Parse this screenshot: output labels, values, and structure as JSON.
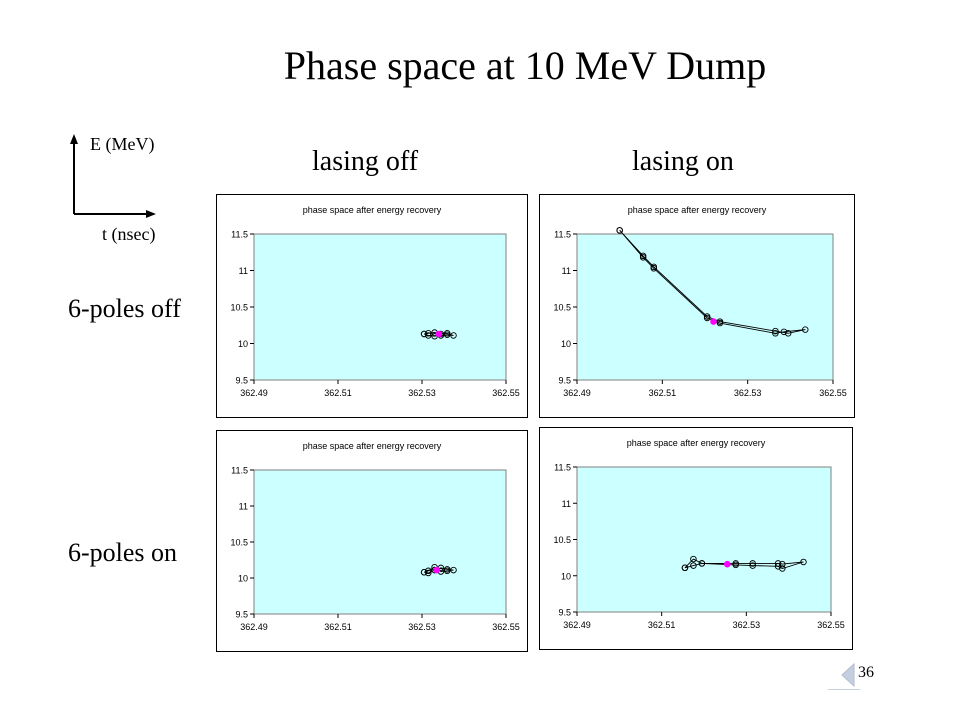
{
  "slide": {
    "title": "Phase space at 10 MeV Dump",
    "axis_hint": {
      "y_label": "E (MeV)",
      "x_label": "t (nsec)"
    },
    "columns": [
      "lasing off",
      "lasing on"
    ],
    "rows": [
      "6-poles off",
      "6-poles on"
    ],
    "page_number": "36"
  },
  "colors": {
    "plot_area": "#ccffff",
    "data_line": "#000000",
    "highlight_point": "#ff00ff"
  },
  "chart_data": [
    {
      "type": "line",
      "title": "phase space after energy recovery",
      "xlabel": "",
      "ylabel": "",
      "xlim": [
        362.49,
        362.55
      ],
      "ylim": [
        9.5,
        11.5
      ],
      "x_ticks": [
        "362.49",
        "362.51",
        "362.53",
        "362.55"
      ],
      "y_ticks": [
        "9.5",
        "10",
        "10.5",
        "11",
        "11.5"
      ],
      "grid": false,
      "series": [
        {
          "x": [
            362.5305,
            362.5315,
            362.533,
            362.5345,
            362.536,
            362.5375,
            362.536,
            362.5345,
            362.533,
            362.5315,
            362.5305
          ],
          "y": [
            10.13,
            10.11,
            10.1,
            10.11,
            10.12,
            10.11,
            10.14,
            10.13,
            10.15,
            10.14,
            10.13
          ]
        }
      ],
      "highlight": [
        [
          362.534,
          10.13
        ]
      ]
    },
    {
      "type": "line",
      "title": "phase space after energy recovery",
      "xlabel": "",
      "ylabel": "",
      "xlim": [
        362.49,
        362.55
      ],
      "ylim": [
        9.5,
        11.5
      ],
      "x_ticks": [
        "362.49",
        "362.51",
        "362.53",
        "362.55"
      ],
      "y_ticks": [
        "9.5",
        "10",
        "10.5",
        "11",
        "11.5"
      ],
      "grid": false,
      "series": [
        {
          "x": [
            362.5,
            362.5055,
            362.508,
            362.5205,
            362.5235,
            362.5365,
            362.5395,
            362.5435,
            362.5385,
            362.5365,
            362.5235,
            362.5205,
            362.508,
            362.5055,
            362.5
          ],
          "y": [
            11.55,
            11.2,
            11.05,
            10.37,
            10.3,
            10.17,
            10.14,
            10.19,
            10.16,
            10.14,
            10.28,
            10.35,
            11.03,
            11.18,
            11.55
          ]
        }
      ],
      "highlight": [
        [
          362.522,
          10.3
        ]
      ]
    },
    {
      "type": "line",
      "title": "phase space after energy recovery",
      "xlabel": "",
      "ylabel": "",
      "xlim": [
        362.49,
        362.55
      ],
      "ylim": [
        9.5,
        11.5
      ],
      "x_ticks": [
        "362.49",
        "362.51",
        "362.53",
        "362.55"
      ],
      "y_ticks": [
        "9.5",
        "10",
        "10.5",
        "11",
        "11.5"
      ],
      "grid": false,
      "series": [
        {
          "x": [
            362.5305,
            362.5315,
            362.533,
            362.5345,
            362.536,
            362.5375,
            362.536,
            362.5345,
            362.533,
            362.5315,
            362.5305
          ],
          "y": [
            10.08,
            10.07,
            10.11,
            10.14,
            10.12,
            10.11,
            10.1,
            10.09,
            10.15,
            10.1,
            10.08
          ]
        }
      ],
      "highlight": [
        [
          362.5335,
          10.11
        ]
      ]
    },
    {
      "type": "line",
      "title": "phase space after energy recovery",
      "xlabel": "",
      "ylabel": "",
      "xlim": [
        362.49,
        362.55
      ],
      "ylim": [
        9.5,
        11.5
      ],
      "x_ticks": [
        "362.49",
        "362.51",
        "362.53",
        "362.55"
      ],
      "y_ticks": [
        "9.5",
        "10",
        "10.5",
        "11",
        "11.5"
      ],
      "grid": false,
      "series": [
        {
          "x": [
            362.5155,
            362.5175,
            362.5195,
            362.5275,
            362.5315,
            362.5375,
            362.5385,
            362.5435,
            362.5385,
            362.5375,
            362.5315,
            362.5275,
            362.5195,
            362.5175,
            362.5155
          ],
          "y": [
            10.11,
            10.14,
            10.17,
            10.15,
            10.14,
            10.13,
            10.1,
            10.19,
            10.16,
            10.17,
            10.17,
            10.17,
            10.17,
            10.23,
            10.11
          ]
        }
      ],
      "highlight": [
        [
          362.5255,
          10.16
        ]
      ]
    }
  ]
}
